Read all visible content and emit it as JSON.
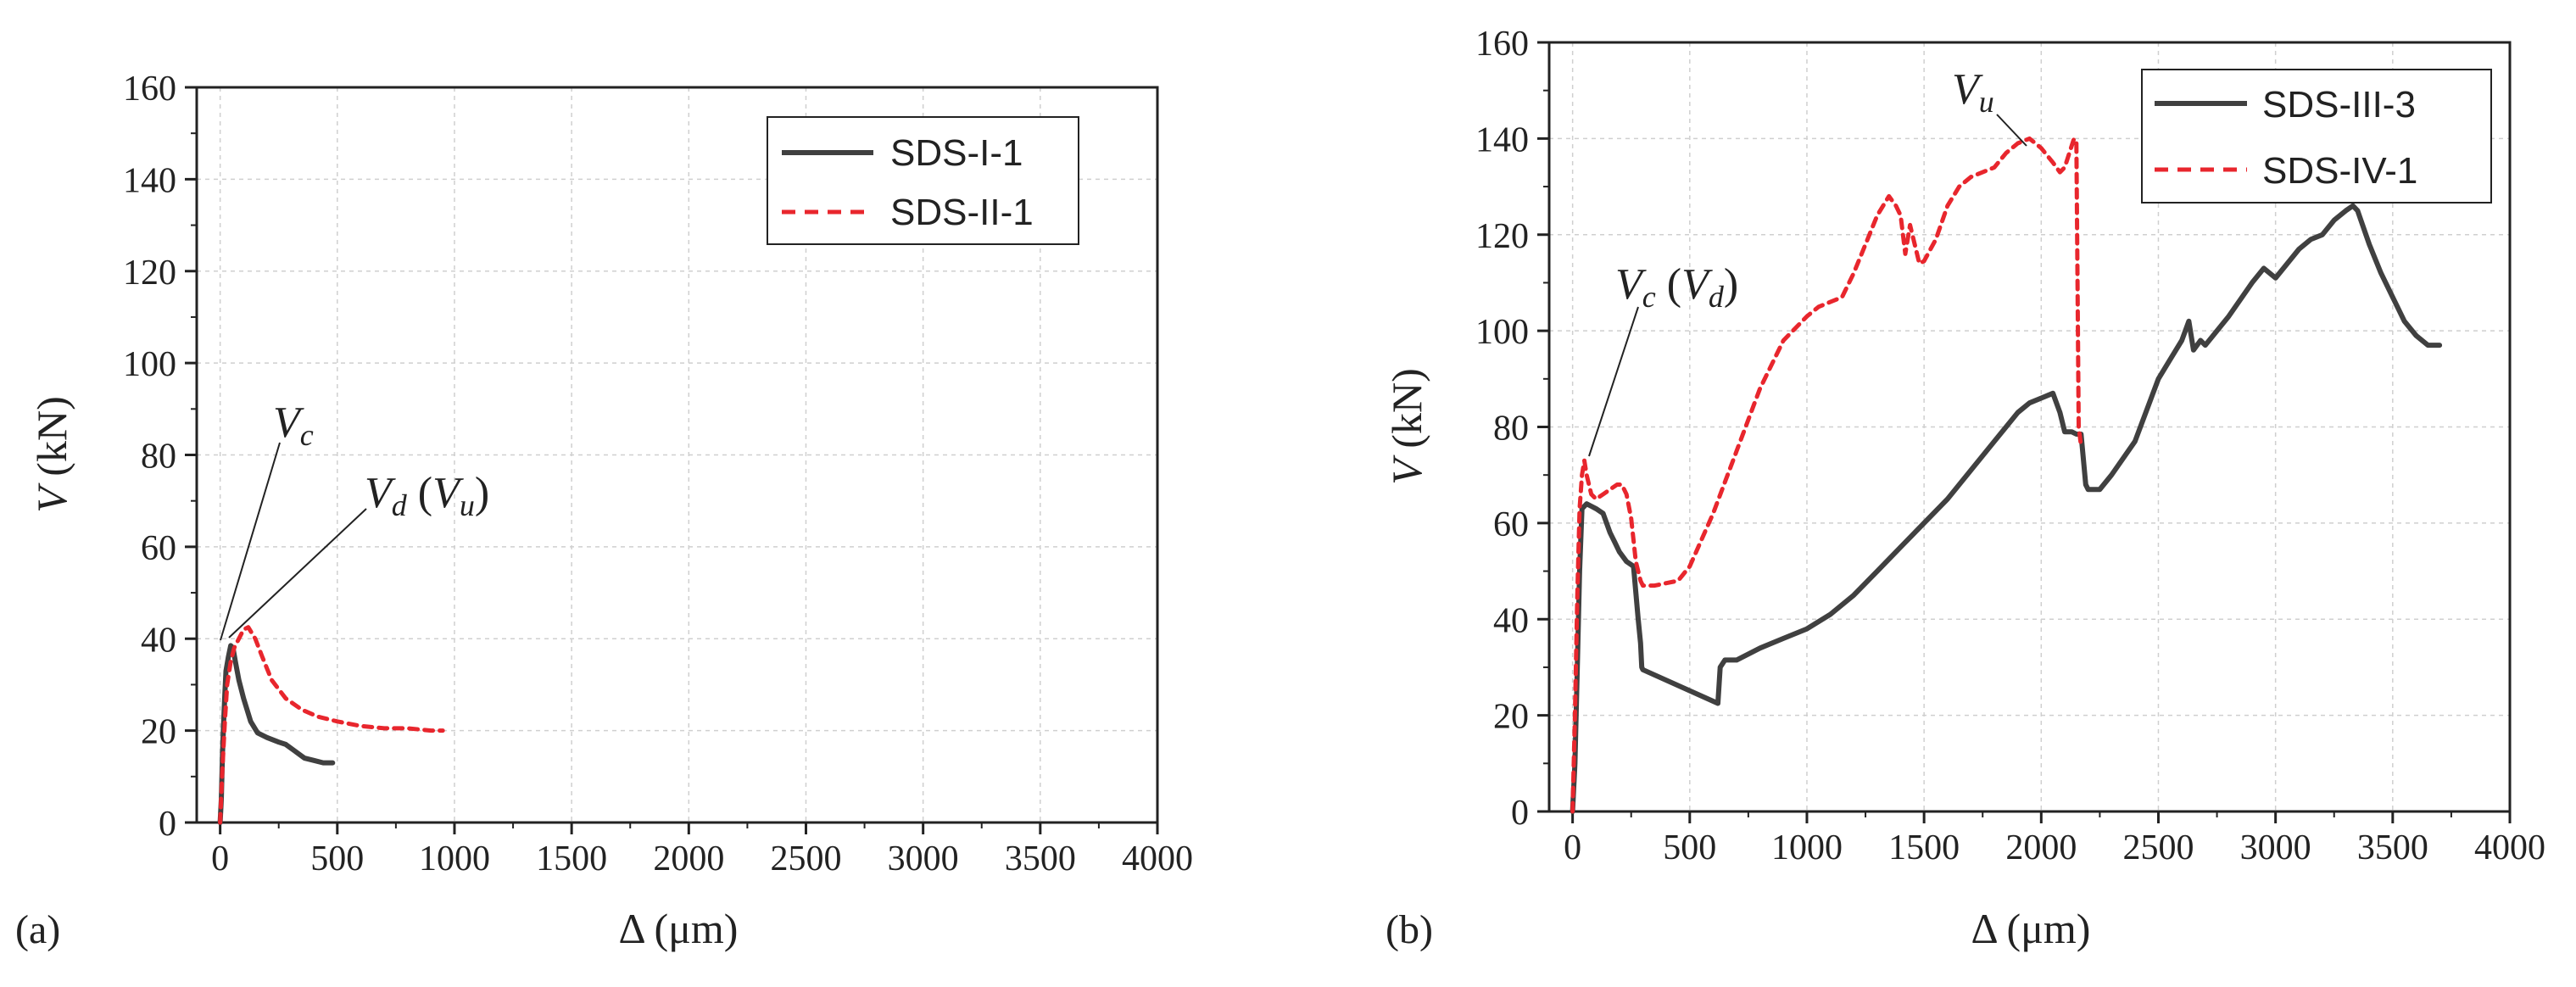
{
  "chart_data": [
    {
      "type": "line",
      "panel_label": "(a)",
      "xlabel_symbol": "Δ",
      "xlabel_unit": "(μm)",
      "ylabel_symbol": "V",
      "ylabel_unit": "(kN)",
      "xlim": [
        -100,
        4000
      ],
      "ylim": [
        0,
        160
      ],
      "x_ticks": [
        0,
        500,
        1000,
        1500,
        2000,
        2500,
        3000,
        3500,
        4000
      ],
      "y_ticks": [
        0,
        20,
        40,
        60,
        80,
        100,
        120,
        140,
        160
      ],
      "grid": true,
      "legend_position": "top-right",
      "series": [
        {
          "name": "SDS-I-1",
          "color": "#404040",
          "style": "solid",
          "x": [
            0,
            5,
            10,
            15,
            20,
            25,
            35,
            45,
            55,
            65,
            80,
            100,
            130,
            160,
            200,
            250,
            280,
            320,
            360,
            400,
            440,
            480
          ],
          "y": [
            0,
            5,
            15,
            22,
            28,
            33,
            36,
            38.5,
            38,
            35,
            31,
            27,
            22,
            19.5,
            18.5,
            17.5,
            17,
            15.5,
            14,
            13.5,
            13,
            13
          ]
        },
        {
          "name": "SDS-II-1",
          "color": "#e8262d",
          "style": "dashed",
          "x": [
            0,
            10,
            20,
            30,
            45,
            60,
            80,
            100,
            120,
            150,
            180,
            220,
            280,
            350,
            420,
            500,
            600,
            700,
            800,
            900,
            950
          ],
          "y": [
            0,
            12,
            22,
            30,
            35,
            38,
            40,
            42,
            42.5,
            40,
            36,
            31,
            27,
            24.5,
            23,
            22,
            21,
            20.5,
            20.5,
            20,
            20
          ]
        }
      ],
      "annotations": [
        {
          "main": "V",
          "sub": "c"
        },
        {
          "main": "V",
          "sub": "d",
          "paren_main": "V",
          "paren_sub": "u"
        }
      ]
    },
    {
      "type": "line",
      "panel_label": "(b)",
      "xlabel_symbol": "Δ",
      "xlabel_unit": "(μm)",
      "ylabel_symbol": "V",
      "ylabel_unit": "(kN)",
      "xlim": [
        -100,
        4000
      ],
      "ylim": [
        0,
        160
      ],
      "x_ticks": [
        0,
        500,
        1000,
        1500,
        2000,
        2500,
        3000,
        3500,
        4000
      ],
      "y_ticks": [
        0,
        20,
        40,
        60,
        80,
        100,
        120,
        140,
        160
      ],
      "grid": true,
      "legend_position": "top-right",
      "series": [
        {
          "name": "SDS-III-3",
          "color": "#404040",
          "style": "solid",
          "x": [
            0,
            10,
            20,
            30,
            40,
            60,
            80,
            100,
            130,
            160,
            180,
            200,
            230,
            260,
            280,
            290,
            295,
            300,
            620,
            630,
            650,
            700,
            800,
            900,
            1000,
            1100,
            1200,
            1300,
            1400,
            1500,
            1600,
            1700,
            1800,
            1900,
            1950,
            2000,
            2050,
            2080,
            2100,
            2130,
            2150,
            2170,
            2190,
            2200,
            2250,
            2300,
            2400,
            2500,
            2550,
            2600,
            2630,
            2650,
            2680,
            2700,
            2800,
            2900,
            2950,
            3000,
            3050,
            3100,
            3150,
            3200,
            3250,
            3300,
            3330,
            3350,
            3400,
            3450,
            3500,
            3550,
            3600,
            3650,
            3700
          ],
          "y": [
            0,
            10,
            30,
            50,
            63,
            64,
            63.5,
            63,
            62,
            58,
            56,
            54,
            52,
            51,
            40,
            35,
            30,
            29.5,
            22.5,
            30,
            31.5,
            31.5,
            34,
            36,
            38,
            41,
            45,
            50,
            55,
            60,
            65,
            71,
            77,
            83,
            85,
            86,
            87,
            83,
            79,
            79,
            78.5,
            78.5,
            68,
            67,
            67,
            70,
            77,
            90,
            94,
            98,
            102,
            96,
            98,
            97,
            103,
            110,
            113,
            111,
            114,
            117,
            119,
            120,
            123,
            125,
            126,
            125,
            118,
            112,
            107,
            102,
            99,
            97,
            97
          ],
          "show_markers": false
        },
        {
          "name": "SDS-IV-1",
          "color": "#e8262d",
          "style": "dashed",
          "x": [
            0,
            10,
            20,
            30,
            40,
            50,
            60,
            80,
            100,
            130,
            160,
            190,
            210,
            230,
            250,
            270,
            290,
            300,
            350,
            400,
            450,
            500,
            600,
            700,
            800,
            900,
            1000,
            1050,
            1100,
            1150,
            1200,
            1250,
            1300,
            1350,
            1380,
            1400,
            1420,
            1440,
            1480,
            1500,
            1550,
            1600,
            1650,
            1700,
            1750,
            1800,
            1850,
            1900,
            1950,
            2000,
            2050,
            2080,
            2100,
            2120,
            2140,
            2150,
            2160,
            2170
          ],
          "y": [
            0,
            20,
            45,
            63,
            70,
            73,
            70,
            66,
            65,
            66,
            67,
            68,
            68,
            66,
            61,
            52,
            48,
            47,
            47,
            47.5,
            48,
            51,
            62,
            75,
            88,
            98,
            103,
            105,
            106,
            107,
            112,
            118,
            124,
            128,
            126,
            124,
            116,
            122,
            114,
            114.5,
            119,
            126,
            130,
            132,
            133,
            134,
            137,
            139,
            140,
            138,
            135,
            133,
            134,
            137,
            140,
            139,
            80,
            76
          ],
          "show_markers": false
        }
      ],
      "annotations": [
        {
          "main": "V",
          "sub": "c",
          "paren_main": "V",
          "paren_sub": "d"
        },
        {
          "main": "V",
          "sub": "u"
        }
      ]
    }
  ]
}
